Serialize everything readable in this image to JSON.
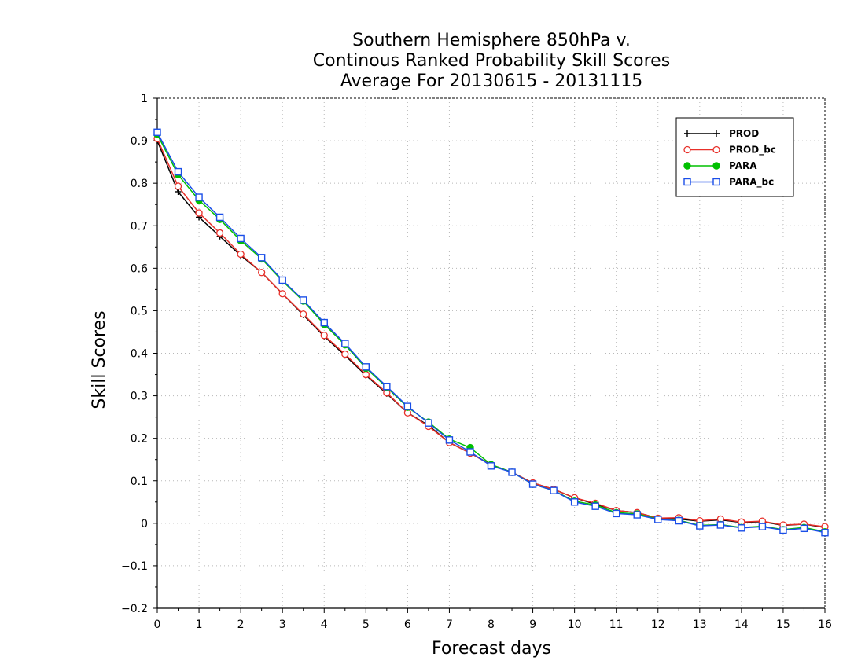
{
  "chart_data": {
    "type": "line",
    "title": [
      "Southern Hemisphere 850hPa v.",
      "Continous Ranked Probability Skill Scores",
      "Average For 20130615 - 20131115"
    ],
    "xlabel": "Forecast days",
    "ylabel": "Skill Scores",
    "xlim": [
      0,
      16
    ],
    "ylim": [
      -0.2,
      1
    ],
    "xticks": [
      0,
      1,
      2,
      3,
      4,
      5,
      6,
      7,
      8,
      9,
      10,
      11,
      12,
      13,
      14,
      15,
      16
    ],
    "yticks": [
      -0.2,
      -0.1,
      0,
      0.1,
      0.2,
      0.3,
      0.4,
      0.5,
      0.6,
      0.7,
      0.8,
      0.9,
      1
    ],
    "ytick_labels": [
      "−0.2",
      "−0.1",
      "0",
      "0.1",
      "0.2",
      "0.3",
      "0.4",
      "0.5",
      "0.6",
      "0.7",
      "0.8",
      "0.9",
      "1"
    ],
    "grid": true,
    "legend_position": "top-right",
    "x": [
      0,
      0.5,
      1,
      1.5,
      2,
      2.5,
      3,
      3.5,
      4,
      4.5,
      5,
      5.5,
      6,
      6.5,
      7,
      7.5,
      8,
      8.5,
      9,
      9.5,
      10,
      10.5,
      11,
      11.5,
      12,
      12.5,
      13,
      13.5,
      14,
      14.5,
      15,
      15.5,
      16
    ],
    "series": [
      {
        "name": "PROD",
        "color": "#000000",
        "marker": "plus",
        "values": [
          0.9,
          0.78,
          0.72,
          0.675,
          0.63,
          0.59,
          0.54,
          0.49,
          0.44,
          0.395,
          0.348,
          0.305,
          0.26,
          0.23,
          0.19,
          0.165,
          0.138,
          0.12,
          0.095,
          0.08,
          0.06,
          0.045,
          0.03,
          0.025,
          0.012,
          0.01,
          0.005,
          0.008,
          0.002,
          0.004,
          -0.005,
          -0.002,
          -0.01
        ]
      },
      {
        "name": "PROD_bc",
        "color": "#e8302a",
        "marker": "circle",
        "values": [
          0.905,
          0.793,
          0.73,
          0.683,
          0.633,
          0.59,
          0.54,
          0.492,
          0.442,
          0.398,
          0.35,
          0.307,
          0.26,
          0.228,
          0.19,
          0.165,
          0.137,
          0.12,
          0.095,
          0.08,
          0.06,
          0.047,
          0.03,
          0.025,
          0.012,
          0.013,
          0.006,
          0.01,
          0.003,
          0.005,
          -0.004,
          -0.002,
          -0.008
        ]
      },
      {
        "name": "PARA",
        "color": "#00c000",
        "marker": "filled-circle",
        "values": [
          0.915,
          0.82,
          0.76,
          0.715,
          0.665,
          0.622,
          0.57,
          0.523,
          0.468,
          0.42,
          0.365,
          0.32,
          0.273,
          0.238,
          0.198,
          0.178,
          0.138,
          0.12,
          0.092,
          0.077,
          0.052,
          0.043,
          0.025,
          0.022,
          0.01,
          0.007,
          -0.005,
          -0.003,
          -0.01,
          -0.007,
          -0.015,
          -0.01,
          -0.02
        ]
      },
      {
        "name": "PARA_bc",
        "color": "#1a4ee8",
        "marker": "square",
        "values": [
          0.92,
          0.827,
          0.767,
          0.72,
          0.67,
          0.625,
          0.572,
          0.525,
          0.472,
          0.423,
          0.368,
          0.322,
          0.275,
          0.236,
          0.196,
          0.168,
          0.135,
          0.12,
          0.092,
          0.077,
          0.05,
          0.04,
          0.023,
          0.02,
          0.009,
          0.006,
          -0.006,
          -0.004,
          -0.011,
          -0.008,
          -0.016,
          -0.012,
          -0.022
        ]
      }
    ]
  }
}
